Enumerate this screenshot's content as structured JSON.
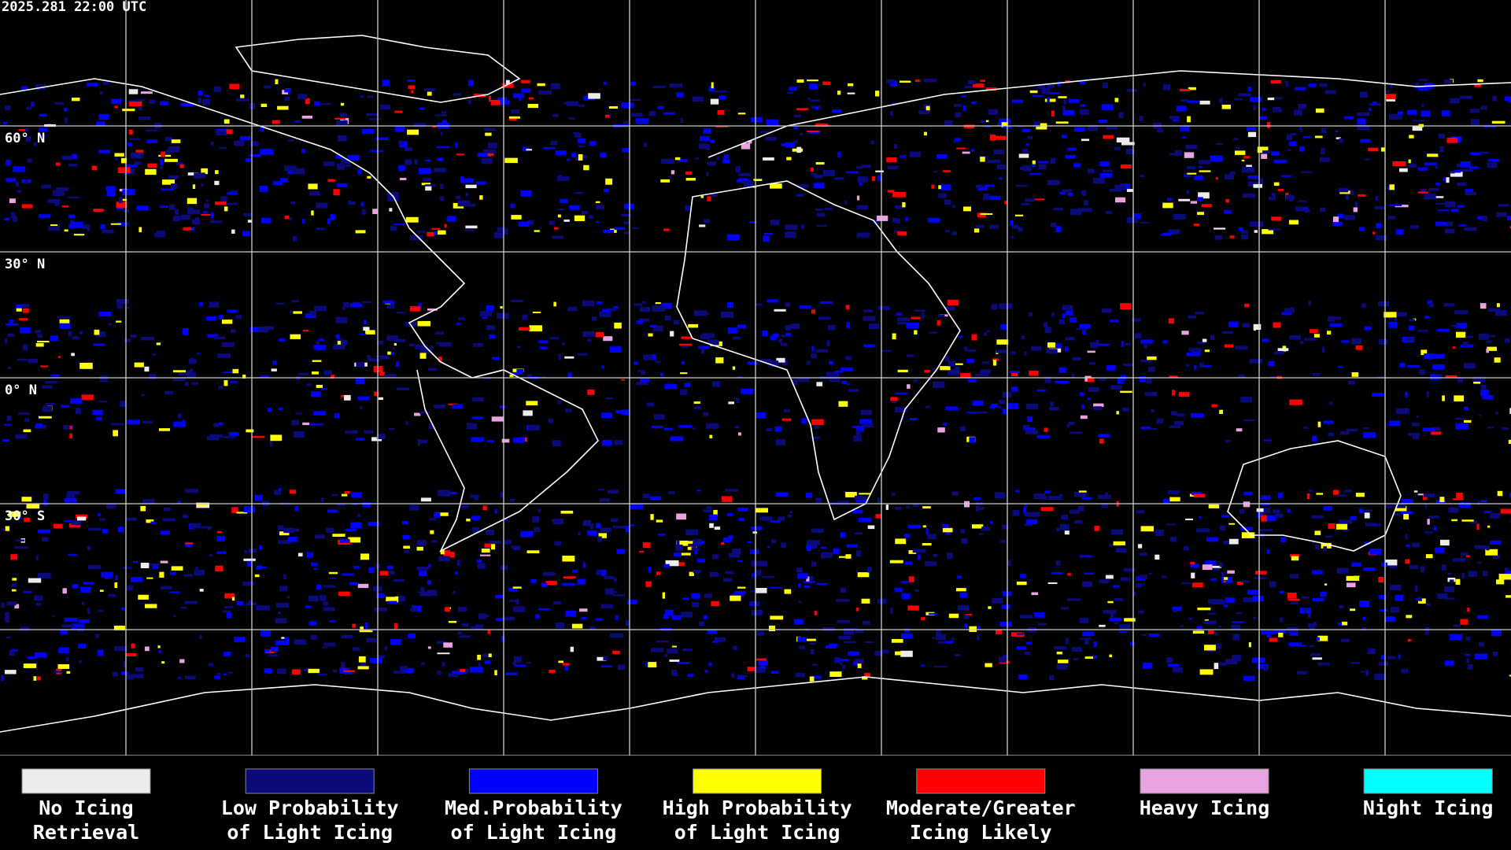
{
  "timestamp": "2025.281 22:00 UTC",
  "latitude_labels": [
    "60° N",
    "30° N",
    "0° N",
    "30° S"
  ],
  "legend": [
    {
      "label_lines": [
        "No Icing",
        "Retrieval"
      ],
      "color": "#ececec"
    },
    {
      "label_lines": [
        "Low Probability",
        "of Light Icing"
      ],
      "color": "#0a0a7a"
    },
    {
      "label_lines": [
        "Med.Probability",
        "of Light Icing"
      ],
      "color": "#0000ff"
    },
    {
      "label_lines": [
        "High Probability",
        "of Light Icing"
      ],
      "color": "#ffff00"
    },
    {
      "label_lines": [
        "Moderate/Greater",
        "Icing Likely"
      ],
      "color": "#ff0000"
    },
    {
      "label_lines": [
        "Heavy Icing"
      ],
      "color": "#e8a4e0"
    },
    {
      "label_lines": [
        "Night Icing"
      ],
      "color": "#00ffff"
    }
  ]
}
